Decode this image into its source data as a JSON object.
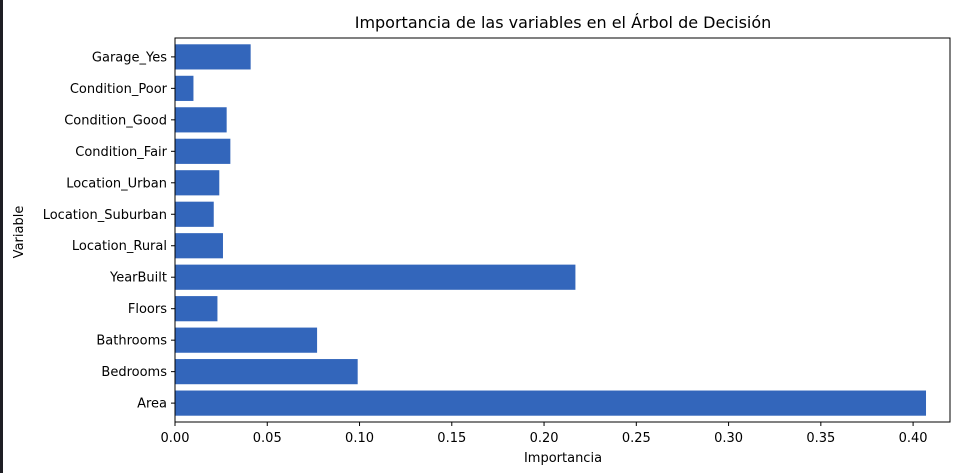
{
  "chart_data": {
    "type": "bar",
    "orientation": "horizontal",
    "title": "Importancia de las variables en el Árbol de Decisión",
    "xlabel": "Importancia",
    "ylabel": "Variable",
    "categories": [
      "Area",
      "Bedrooms",
      "Bathrooms",
      "Floors",
      "YearBuilt",
      "Location_Rural",
      "Location_Suburban",
      "Location_Urban",
      "Condition_Fair",
      "Condition_Good",
      "Condition_Poor",
      "Garage_Yes"
    ],
    "values": [
      0.407,
      0.099,
      0.077,
      0.023,
      0.217,
      0.026,
      0.021,
      0.024,
      0.03,
      0.028,
      0.01,
      0.041
    ],
    "xlim": [
      0.0,
      0.42
    ],
    "xticks": [
      "0.00",
      "0.05",
      "0.10",
      "0.15",
      "0.20",
      "0.25",
      "0.30",
      "0.35",
      "0.40"
    ],
    "bar_color": "#3366bb",
    "grid": false,
    "legend": "none"
  }
}
